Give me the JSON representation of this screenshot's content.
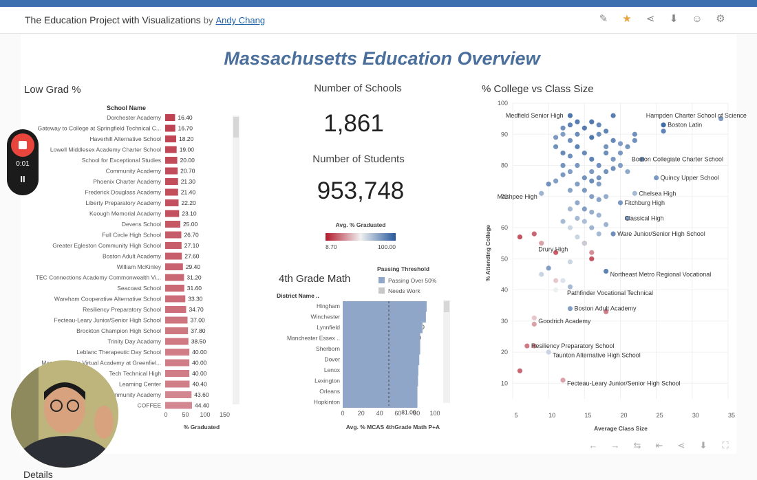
{
  "header": {
    "title": "The Education Project with Visualizations",
    "by": "by",
    "author": "Andy Chang",
    "icons": [
      "edit-icon",
      "star-icon",
      "share-icon",
      "download-icon",
      "account-icon",
      "settings-icon"
    ]
  },
  "dashboard": {
    "title": "Massachusetts Education Overview"
  },
  "low_grad": {
    "title": "Low Grad %",
    "column_header": "School Name",
    "x_label": "% Graduated",
    "x_ticks": [
      "0",
      "50",
      "100",
      "150"
    ],
    "schools": [
      {
        "name": "Dorchester Academy",
        "value": 16.4,
        "label": "16.40"
      },
      {
        "name": "Gateway to College at Springfield Technical C...",
        "value": 16.7,
        "label": "16.70"
      },
      {
        "name": "Haverhill Alternative School",
        "value": 18.2,
        "label": "18.20"
      },
      {
        "name": "Lowell Middlesex Academy Charter School",
        "value": 19.0,
        "label": "19.00"
      },
      {
        "name": "School for Exceptional Studies",
        "value": 20.0,
        "label": "20.00"
      },
      {
        "name": "Community Academy",
        "value": 20.7,
        "label": "20.70"
      },
      {
        "name": "Phoenix Charter Academy",
        "value": 21.3,
        "label": "21.30"
      },
      {
        "name": "Frederick Douglass Academy",
        "value": 21.4,
        "label": "21.40"
      },
      {
        "name": "Liberty Preparatory Academy",
        "value": 22.2,
        "label": "22.20"
      },
      {
        "name": "Keough Memorial Academy",
        "value": 23.1,
        "label": "23.10"
      },
      {
        "name": "Devens School",
        "value": 25.0,
        "label": "25.00"
      },
      {
        "name": "Full Circle High School",
        "value": 26.7,
        "label": "26.70"
      },
      {
        "name": "Greater Egleston Community High School",
        "value": 27.1,
        "label": "27.10"
      },
      {
        "name": "Boston Adult Academy",
        "value": 27.6,
        "label": "27.60"
      },
      {
        "name": "William McKinley",
        "value": 29.4,
        "label": "29.40"
      },
      {
        "name": "TEC Connections Academy Commonwealth Vi...",
        "value": 31.2,
        "label": "31.20"
      },
      {
        "name": "Seacoast School",
        "value": 31.6,
        "label": "31.60"
      },
      {
        "name": "Wareham Cooperative Alternative School",
        "value": 33.3,
        "label": "33.30"
      },
      {
        "name": "Resiliency Preparatory School",
        "value": 34.7,
        "label": "34.70"
      },
      {
        "name": "Fecteau-Leary Junior/Senior High School",
        "value": 37.0,
        "label": "37.00"
      },
      {
        "name": "Brockton Champion High School",
        "value": 37.8,
        "label": "37.80"
      },
      {
        "name": "Trinity Day Academy",
        "value": 38.5,
        "label": "38.50"
      },
      {
        "name": "Leblanc Therapeutic Day School",
        "value": 40.0,
        "label": "40.00"
      },
      {
        "name": "Massachusetts Virtual Academy at Greenfiel...",
        "value": 40.0,
        "label": "40.00"
      },
      {
        "name": "Tech Technical High",
        "value": 40.0,
        "label": "40.00"
      },
      {
        "name": "Learning Center",
        "value": 40.4,
        "label": "40.40"
      },
      {
        "name": "Community Academy",
        "value": 43.6,
        "label": "43.60"
      },
      {
        "name": "COFFEE",
        "value": 44.4,
        "label": "44.40"
      }
    ]
  },
  "kpis": {
    "schools_label": "Number of Schools",
    "schools_value": "1,861",
    "students_label": "Number of Students",
    "students_value": "953,748"
  },
  "legend_grad": {
    "title": "Avg. % Graduated",
    "min": "8.70",
    "max": "100.00"
  },
  "math": {
    "title": "4th Grade Math",
    "column_header": "District Name ..",
    "threshold_title": "Passing Threshold",
    "legend": [
      {
        "label": "Passing Over 50%",
        "color": "#8fa6c8"
      },
      {
        "label": "Needs Work",
        "color": "#c8c8c8"
      }
    ],
    "x_label": "Avg. % MCAS 4thGrade Math P+A",
    "x_ticks": [
      "0",
      "20",
      "40",
      "60",
      "80",
      "100"
    ],
    "districts": [
      {
        "name": "Hingham",
        "value": 91.0,
        "label": "91.00"
      },
      {
        "name": "Winchester",
        "value": 90.2,
        "label": "90.20"
      },
      {
        "name": "Lynnfield",
        "value": 86.5,
        "label": "86.50"
      },
      {
        "name": "Manchester Essex ..",
        "value": 84.0,
        "label": "84.00"
      },
      {
        "name": "Sherborn",
        "value": 84.0,
        "label": "84.00"
      },
      {
        "name": "Dover",
        "value": 83.0,
        "label": "83.00"
      },
      {
        "name": "Lenox",
        "value": 82.0,
        "label": "82.00"
      },
      {
        "name": "Lexington",
        "value": 81.67,
        "label": "81.67"
      },
      {
        "name": "Orleans",
        "value": 81.0,
        "label": "81.00"
      },
      {
        "name": "Hopkinton",
        "value": 81.0,
        "label": "81.00"
      }
    ]
  },
  "chart_data": {
    "type": "scatter",
    "title": "% College vs Class Size",
    "xlabel": "Average Class Size",
    "ylabel": "% Attending College",
    "xlim": [
      5,
      35
    ],
    "ylim": [
      5,
      100
    ],
    "x_ticks": [
      "5",
      "10",
      "15",
      "20",
      "25",
      "30",
      "35"
    ],
    "y_ticks": [
      "10",
      "20",
      "30",
      "40",
      "50",
      "60",
      "70",
      "80",
      "90",
      "100"
    ],
    "annotations": [
      {
        "label": "Medfield Senior High",
        "x": 13,
        "y": 96
      },
      {
        "label": "Hampden Charter School of Science",
        "x": 23,
        "y": 96
      },
      {
        "label": "Boston Latin",
        "x": 26,
        "y": 93
      },
      {
        "label": "Boston Collegiate Charter School",
        "x": 21,
        "y": 82
      },
      {
        "label": "Quincy Upper School",
        "x": 25,
        "y": 76
      },
      {
        "label": "Chelsea High",
        "x": 22,
        "y": 71
      },
      {
        "label": "Fitchburg High",
        "x": 20,
        "y": 68
      },
      {
        "label": "Mashpee High",
        "x": 9,
        "y": 70
      },
      {
        "label": "Classical High",
        "x": 20,
        "y": 63
      },
      {
        "label": "Ware Junior/Senior High School",
        "x": 19,
        "y": 58
      },
      {
        "label": "Drury High",
        "x": 8,
        "y": 53
      },
      {
        "label": "Northeast Metro Regional Vocational",
        "x": 18,
        "y": 45
      },
      {
        "label": "Pathfinder Vocational Technical",
        "x": 12,
        "y": 39
      },
      {
        "label": "Boston Adult Academy",
        "x": 13,
        "y": 34
      },
      {
        "label": "Goodrich Academy",
        "x": 8,
        "y": 30
      },
      {
        "label": "Resiliency Preparatory School",
        "x": 7,
        "y": 22
      },
      {
        "label": "Taunton Alternative High School",
        "x": 10,
        "y": 19
      },
      {
        "label": "Fecteau-Leary Junior/Senior High School",
        "x": 12,
        "y": 10
      }
    ],
    "points": [
      [
        13,
        96,
        95
      ],
      [
        19,
        96,
        92
      ],
      [
        26,
        93,
        98
      ],
      [
        34,
        95,
        80
      ],
      [
        26,
        91,
        90
      ],
      [
        22,
        90,
        85
      ],
      [
        23,
        82,
        88
      ],
      [
        25,
        76,
        82
      ],
      [
        22,
        71,
        70
      ],
      [
        20,
        68,
        82
      ],
      [
        9,
        71,
        72
      ],
      [
        10,
        74,
        85
      ],
      [
        21,
        63,
        80
      ],
      [
        19,
        58,
        85
      ],
      [
        18,
        46,
        90
      ],
      [
        13,
        34,
        80
      ],
      [
        18,
        33,
        20
      ],
      [
        8,
        58,
        15
      ],
      [
        6,
        57,
        10
      ],
      [
        9,
        55,
        30
      ],
      [
        11,
        52,
        12
      ],
      [
        15,
        55,
        15
      ],
      [
        16,
        50,
        10
      ],
      [
        16,
        52,
        25
      ],
      [
        13,
        49,
        60
      ],
      [
        12,
        43,
        55
      ],
      [
        11,
        43,
        40
      ],
      [
        9,
        45,
        60
      ],
      [
        10,
        47,
        80
      ],
      [
        13,
        41,
        70
      ],
      [
        11,
        40,
        50
      ],
      [
        8,
        31,
        40
      ],
      [
        8,
        29,
        30
      ],
      [
        10,
        20,
        60
      ],
      [
        7,
        22,
        20
      ],
      [
        8,
        22,
        25
      ],
      [
        6,
        14,
        15
      ],
      [
        12,
        11,
        30
      ],
      [
        12,
        90,
        80
      ],
      [
        13,
        88,
        85
      ],
      [
        14,
        86,
        90
      ],
      [
        15,
        92,
        92
      ],
      [
        16,
        89,
        95
      ],
      [
        17,
        90,
        85
      ],
      [
        18,
        91,
        90
      ],
      [
        19,
        88,
        88
      ],
      [
        20,
        87,
        80
      ],
      [
        15,
        84,
        87
      ],
      [
        16,
        82,
        90
      ],
      [
        17,
        80,
        85
      ],
      [
        14,
        80,
        82
      ],
      [
        13,
        78,
        80
      ],
      [
        12,
        77,
        82
      ],
      [
        15,
        76,
        84
      ],
      [
        16,
        75,
        86
      ],
      [
        17,
        74,
        80
      ],
      [
        18,
        78,
        84
      ],
      [
        19,
        79,
        85
      ],
      [
        14,
        74,
        80
      ],
      [
        13,
        72,
        78
      ],
      [
        15,
        72,
        82
      ],
      [
        16,
        70,
        80
      ],
      [
        17,
        69,
        78
      ],
      [
        18,
        70,
        75
      ],
      [
        14,
        68,
        76
      ],
      [
        15,
        66,
        80
      ],
      [
        16,
        65,
        74
      ],
      [
        17,
        64,
        72
      ],
      [
        13,
        66,
        70
      ],
      [
        14,
        63,
        70
      ],
      [
        15,
        62,
        68
      ],
      [
        16,
        60,
        72
      ],
      [
        17,
        58,
        70
      ],
      [
        18,
        61,
        72
      ],
      [
        13,
        60,
        60
      ],
      [
        14,
        57,
        60
      ],
      [
        15,
        55,
        58
      ],
      [
        12,
        62,
        70
      ],
      [
        12,
        84,
        88
      ],
      [
        11,
        86,
        85
      ],
      [
        20,
        84,
        82
      ],
      [
        21,
        86,
        84
      ],
      [
        22,
        88,
        85
      ],
      [
        18,
        84,
        86
      ],
      [
        19,
        82,
        82
      ],
      [
        13,
        93,
        90
      ],
      [
        14,
        94,
        92
      ],
      [
        16,
        94,
        94
      ],
      [
        17,
        93,
        88
      ],
      [
        12,
        92,
        85
      ],
      [
        11,
        89,
        82
      ],
      [
        14,
        90,
        86
      ],
      [
        18,
        86,
        84
      ],
      [
        20,
        80,
        80
      ],
      [
        21,
        78,
        76
      ],
      [
        13,
        83,
        85
      ],
      [
        12,
        80,
        84
      ],
      [
        11,
        75,
        80
      ],
      [
        16,
        78,
        82
      ],
      [
        17,
        76,
        84
      ]
    ]
  },
  "recorder": {
    "time": "0:01",
    "pause": "II"
  },
  "footer": {
    "icons": [
      "undo-icon",
      "redo-icon",
      "revert-icon",
      "reset-icon",
      "share-icon",
      "download-icon",
      "fullscreen-icon"
    ]
  },
  "details": {
    "label": "Details"
  }
}
